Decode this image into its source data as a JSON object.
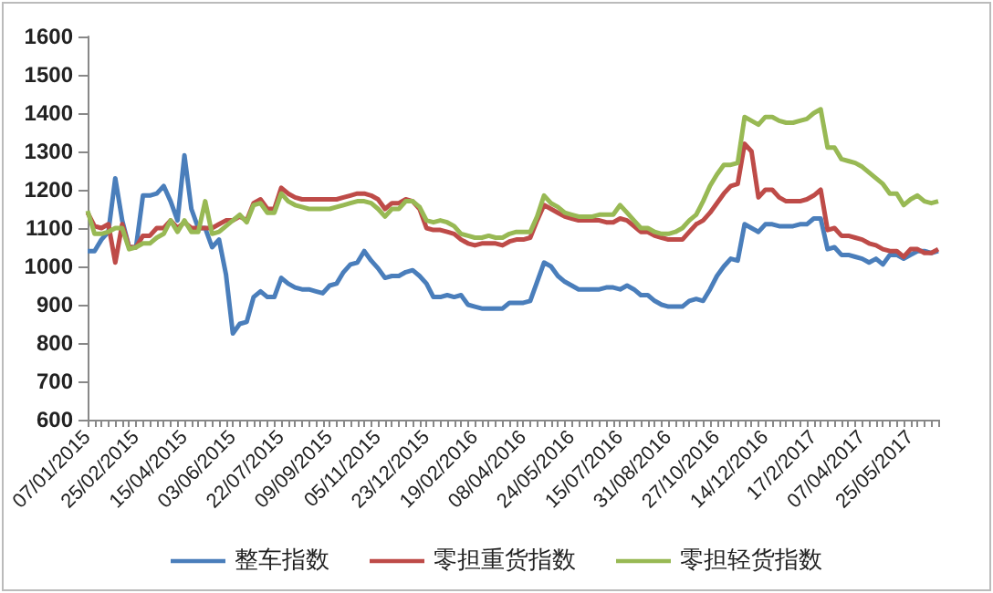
{
  "chart_data": {
    "type": "line",
    "categories": [
      "07/01/2015",
      null,
      null,
      null,
      null,
      null,
      null,
      "25/02/2015",
      null,
      null,
      null,
      null,
      null,
      null,
      "15/04/2015",
      null,
      null,
      null,
      null,
      null,
      null,
      "03/06/2015",
      null,
      null,
      null,
      null,
      null,
      null,
      "22/07/2015",
      null,
      null,
      null,
      null,
      null,
      null,
      "09/09/2015",
      null,
      null,
      null,
      null,
      null,
      null,
      "05/11/2015",
      null,
      null,
      null,
      null,
      null,
      null,
      "23/12/2015",
      null,
      null,
      null,
      null,
      null,
      null,
      "19/02/2016",
      null,
      null,
      null,
      null,
      null,
      null,
      "08/04/2016",
      null,
      null,
      null,
      null,
      null,
      null,
      "24/05/2016",
      null,
      null,
      null,
      null,
      null,
      null,
      "15/07/2016",
      null,
      null,
      null,
      null,
      null,
      null,
      "31/08/2016",
      null,
      null,
      null,
      null,
      null,
      null,
      "27/10/2016",
      null,
      null,
      null,
      null,
      null,
      null,
      "14/12/2016",
      null,
      null,
      null,
      null,
      null,
      null,
      "17/2/2017",
      null,
      null,
      null,
      null,
      null,
      null,
      "07/04/2017",
      null,
      null,
      null,
      null,
      null,
      null,
      "25/05/2017",
      null,
      null,
      null,
      null
    ],
    "series": [
      {
        "name": "整车指数",
        "color": "#4a7ebb",
        "values": [
          1040,
          1040,
          1070,
          1090,
          1230,
          1120,
          1050,
          1050,
          1185,
          1185,
          1190,
          1210,
          1170,
          1120,
          1290,
          1150,
          1100,
          1100,
          1050,
          1070,
          980,
          825,
          850,
          855,
          920,
          935,
          920,
          920,
          970,
          955,
          945,
          940,
          940,
          935,
          930,
          950,
          955,
          985,
          1005,
          1010,
          1040,
          1015,
          995,
          970,
          975,
          975,
          985,
          990,
          975,
          955,
          920,
          920,
          925,
          920,
          925,
          900,
          895,
          890,
          890,
          890,
          890,
          905,
          905,
          905,
          910,
          960,
          1010,
          1000,
          975,
          960,
          950,
          940,
          940,
          940,
          940,
          945,
          945,
          940,
          950,
          940,
          925,
          925,
          910,
          900,
          895,
          895,
          895,
          910,
          915,
          910,
          940,
          975,
          1000,
          1020,
          1015,
          1110,
          1100,
          1090,
          1110,
          1110,
          1105,
          1105,
          1105,
          1110,
          1110,
          1125,
          1125,
          1045,
          1050,
          1030,
          1030,
          1025,
          1020,
          1010,
          1020,
          1005,
          1030,
          1030,
          1020,
          1030,
          1040,
          1040,
          1035,
          1040
        ]
      },
      {
        "name": "零担重货指数",
        "color": "#be4b48",
        "values": [
          1140,
          1105,
          1100,
          1110,
          1010,
          1110,
          1050,
          1050,
          1080,
          1080,
          1100,
          1100,
          1120,
          1100,
          1115,
          1100,
          1100,
          1100,
          1100,
          1110,
          1120,
          1120,
          1130,
          1120,
          1165,
          1175,
          1150,
          1150,
          1205,
          1190,
          1180,
          1175,
          1175,
          1175,
          1175,
          1175,
          1175,
          1180,
          1185,
          1190,
          1190,
          1185,
          1175,
          1150,
          1165,
          1165,
          1175,
          1170,
          1150,
          1100,
          1095,
          1095,
          1090,
          1085,
          1070,
          1060,
          1055,
          1060,
          1060,
          1060,
          1055,
          1065,
          1070,
          1070,
          1075,
          1120,
          1160,
          1150,
          1140,
          1130,
          1125,
          1120,
          1120,
          1120,
          1120,
          1115,
          1115,
          1125,
          1120,
          1105,
          1090,
          1090,
          1080,
          1075,
          1070,
          1070,
          1070,
          1090,
          1110,
          1120,
          1140,
          1165,
          1190,
          1210,
          1215,
          1320,
          1300,
          1180,
          1200,
          1200,
          1180,
          1170,
          1170,
          1170,
          1175,
          1185,
          1200,
          1095,
          1100,
          1080,
          1080,
          1075,
          1070,
          1060,
          1055,
          1045,
          1040,
          1040,
          1025,
          1045,
          1045,
          1035,
          1035,
          1045
        ]
      },
      {
        "name": "零担轻货指数",
        "color": "#98b954",
        "values": [
          1145,
          1085,
          1085,
          1090,
          1100,
          1100,
          1045,
          1050,
          1060,
          1060,
          1075,
          1085,
          1120,
          1090,
          1120,
          1090,
          1090,
          1170,
          1085,
          1090,
          1105,
          1120,
          1135,
          1115,
          1160,
          1165,
          1140,
          1140,
          1190,
          1170,
          1160,
          1155,
          1150,
          1150,
          1150,
          1150,
          1155,
          1160,
          1165,
          1170,
          1170,
          1165,
          1150,
          1130,
          1150,
          1150,
          1170,
          1170,
          1155,
          1120,
          1115,
          1120,
          1115,
          1105,
          1085,
          1080,
          1075,
          1075,
          1080,
          1075,
          1075,
          1085,
          1090,
          1090,
          1090,
          1130,
          1185,
          1165,
          1155,
          1140,
          1135,
          1130,
          1130,
          1130,
          1135,
          1135,
          1135,
          1160,
          1140,
          1120,
          1100,
          1100,
          1090,
          1085,
          1085,
          1090,
          1100,
          1120,
          1135,
          1170,
          1210,
          1240,
          1265,
          1265,
          1270,
          1390,
          1380,
          1370,
          1390,
          1390,
          1380,
          1375,
          1375,
          1380,
          1385,
          1400,
          1410,
          1310,
          1310,
          1280,
          1275,
          1270,
          1260,
          1245,
          1230,
          1215,
          1190,
          1190,
          1160,
          1175,
          1185,
          1170,
          1165,
          1170
        ]
      }
    ],
    "ylim": [
      600,
      1600
    ],
    "yticks": [
      600,
      700,
      800,
      900,
      1000,
      1100,
      1200,
      1300,
      1400,
      1500,
      1600
    ],
    "grid": false,
    "legend": "bottom",
    "marker": "none",
    "line_style": "solid"
  }
}
